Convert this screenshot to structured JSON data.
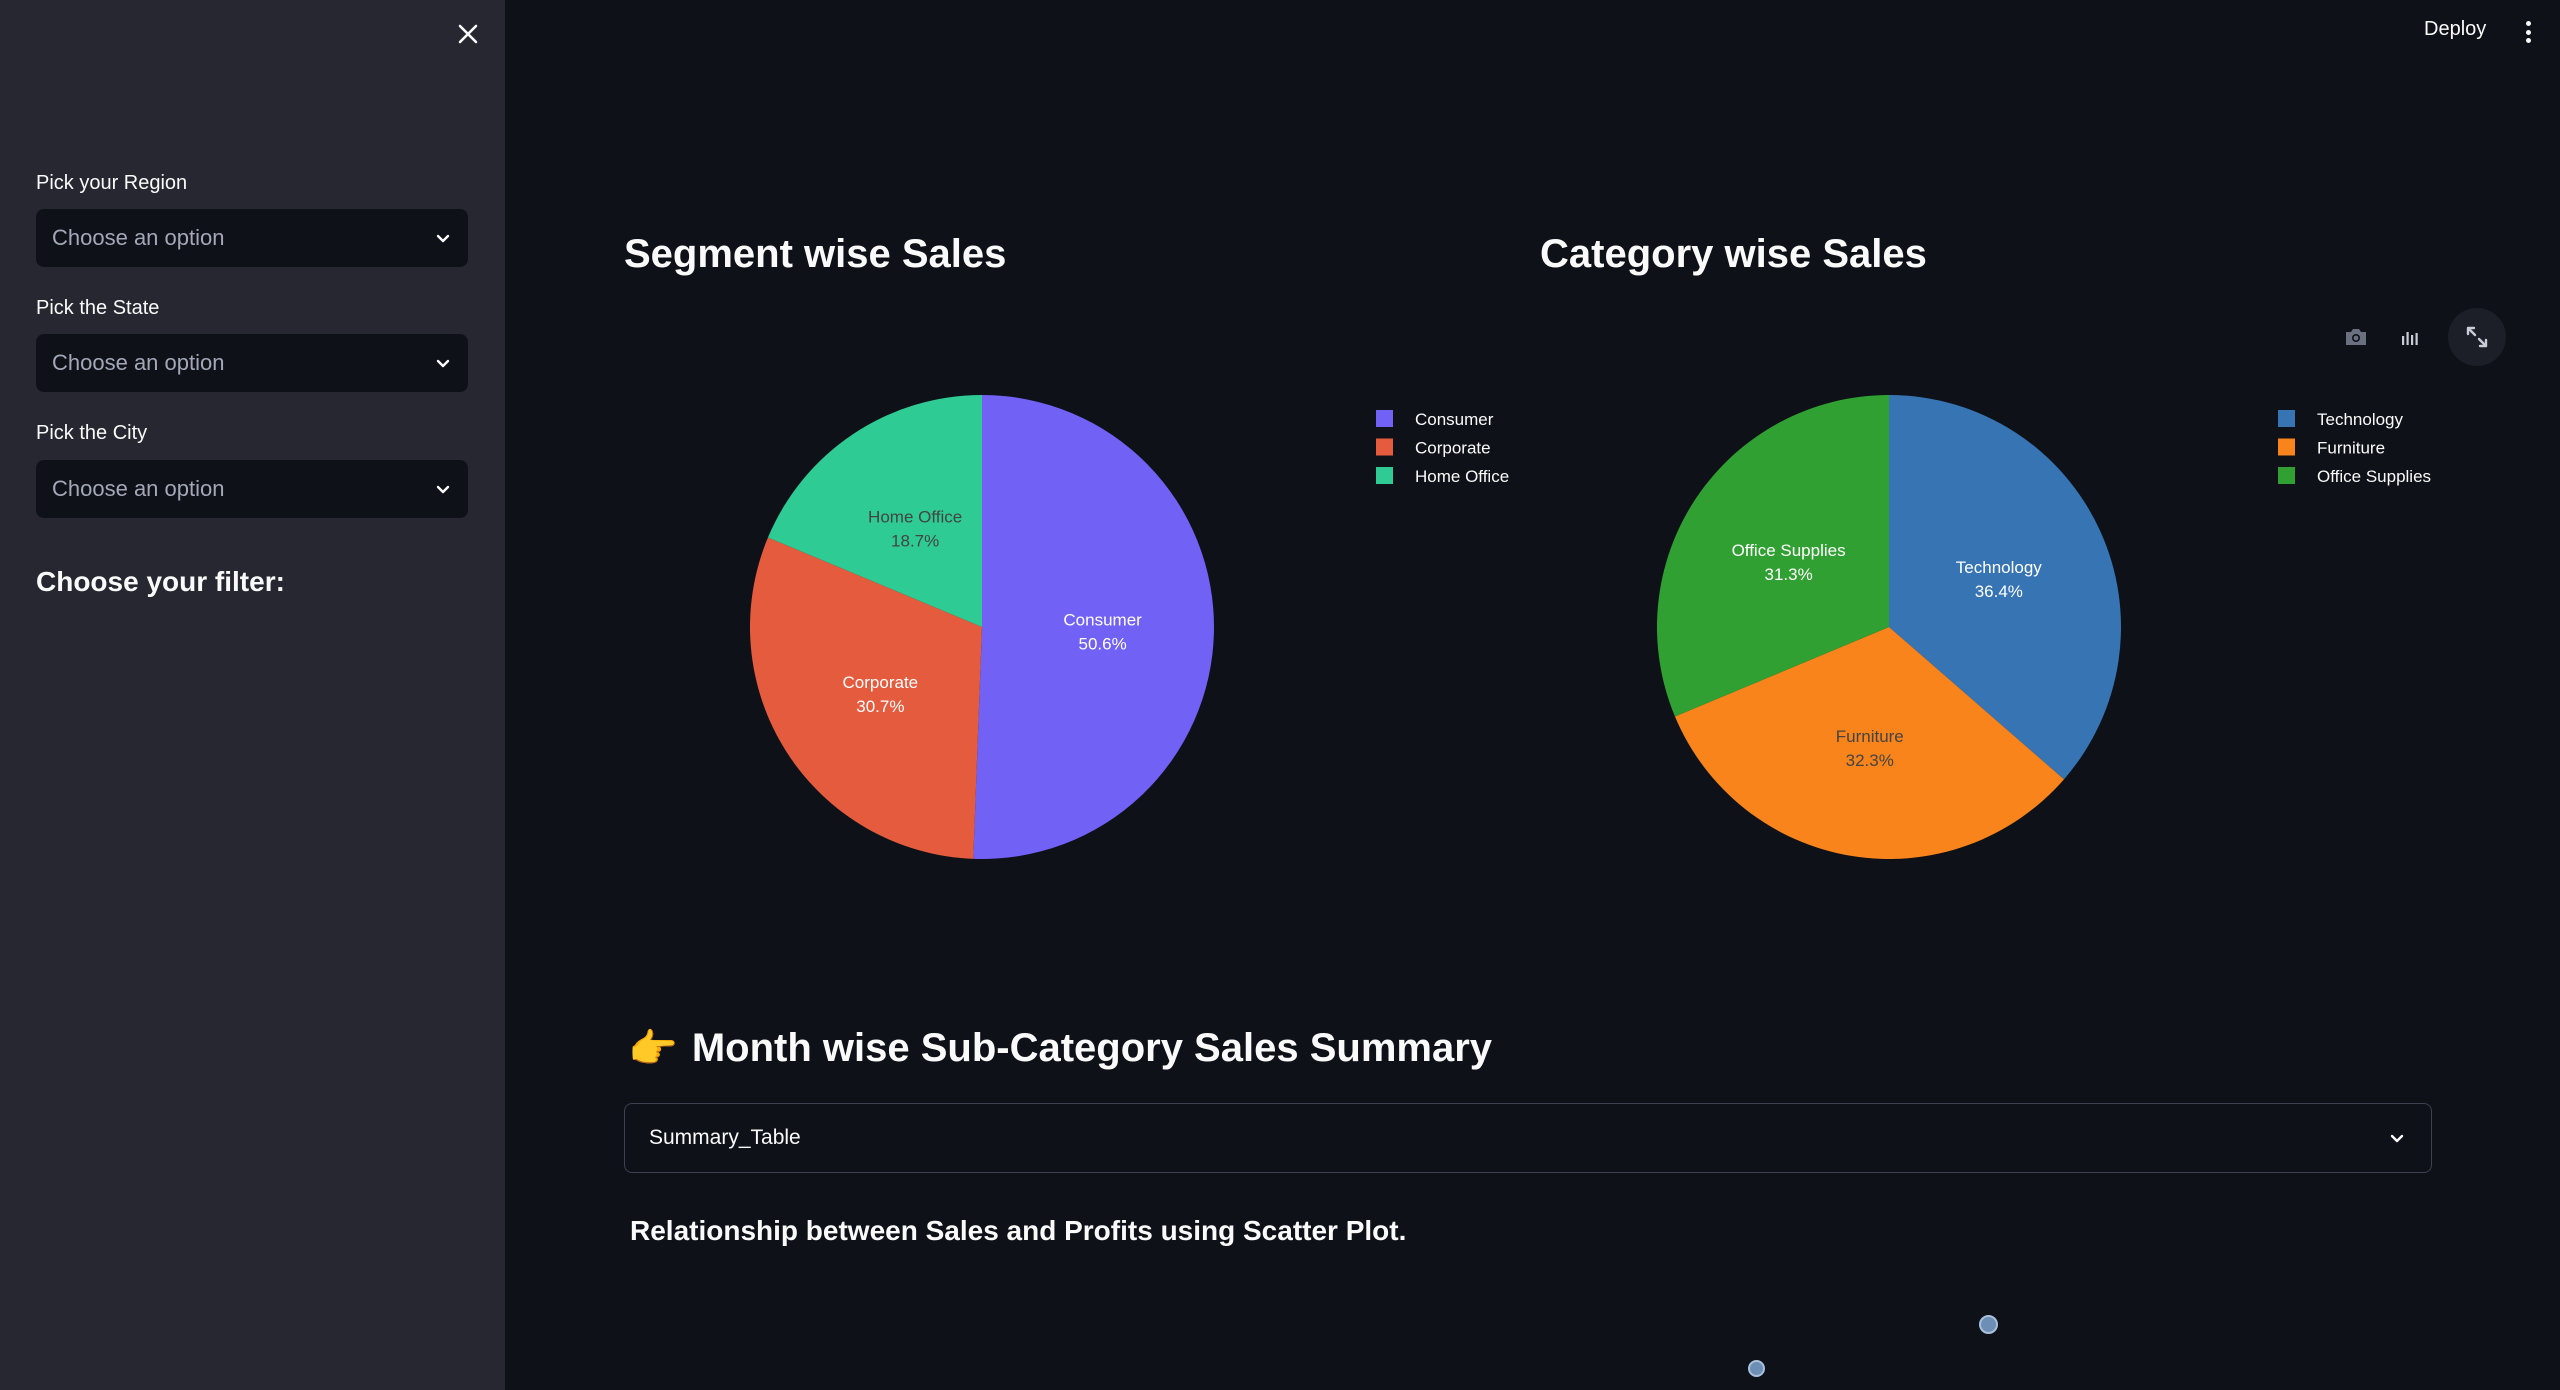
{
  "sidebar": {
    "region_label": "Pick your Region",
    "region_placeholder": "Choose an option",
    "state_label": "Pick the State",
    "state_placeholder": "Choose an option",
    "city_label": "Pick the City",
    "city_placeholder": "Choose an option",
    "filter_heading": "Choose your filter:"
  },
  "toolbar": {
    "deploy_label": "Deploy"
  },
  "charts": {
    "segment_title": "Segment wise Sales",
    "category_title": "Category wise Sales"
  },
  "chart_data": [
    {
      "type": "pie",
      "title": "Segment wise Sales",
      "categories": [
        "Consumer",
        "Corporate",
        "Home Office"
      ],
      "values": [
        50.6,
        30.7,
        18.7
      ],
      "labels": [
        "50.6%",
        "30.7%",
        "18.7%"
      ],
      "colors": [
        "#7161f5",
        "#e45b3e",
        "#2ecb94"
      ],
      "legend_placement": "top-right"
    },
    {
      "type": "pie",
      "title": "Category wise Sales",
      "categories": [
        "Technology",
        "Furniture",
        "Office Supplies"
      ],
      "values": [
        36.4,
        32.3,
        31.3
      ],
      "labels": [
        "36.4%",
        "32.3%",
        "31.3%"
      ],
      "colors": [
        "#3674b4",
        "#f8841b",
        "#31a032"
      ],
      "legend_placement": "top-right"
    }
  ],
  "summary": {
    "heading_emoji": "👉",
    "heading": "Month wise Sub-Category Sales Summary",
    "expander_label": "Summary_Table"
  },
  "scatter": {
    "title": "Relationship between Sales and Profits using Scatter Plot."
  },
  "icons": {
    "close": "close-icon",
    "camera": "camera-icon",
    "bar": "bar-chart-icon",
    "expand": "expand-icon",
    "chevron": "chevron-down-icon",
    "kebab": "kebab-menu-icon"
  }
}
